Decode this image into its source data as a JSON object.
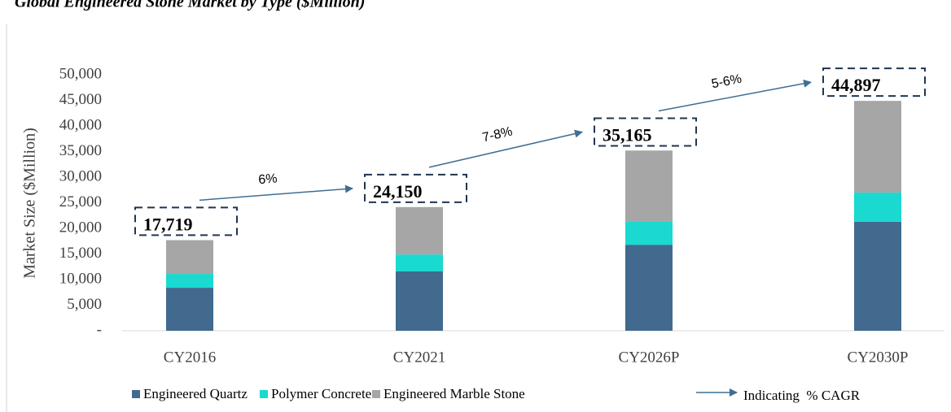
{
  "chart_data": {
    "type": "bar",
    "stacked": true,
    "title": "Global Engineered Stone Market by Type ($Million)",
    "y_label": "Market Size ($Million)",
    "categories": [
      "CY2016",
      "CY2021",
      "CY2026P",
      "CY2030P"
    ],
    "series": [
      {
        "name": "Engineered Quartz",
        "color": "#416a8e",
        "values": [
          8400,
          11600,
          16800,
          21300
        ]
      },
      {
        "name": "Polymer Concrete",
        "color": "#19d9d0",
        "values": [
          2700,
          3300,
          4600,
          5700
        ]
      },
      {
        "name": "Engineered Marble Stone",
        "color": "#a6a6a6",
        "values": [
          6600,
          9250,
          13800,
          17900
        ]
      }
    ],
    "totals": {
      "values": [
        17719,
        24150,
        35165,
        44897
      ],
      "value_labels": [
        "17,719",
        "24,150",
        "35,165",
        "44,897"
      ]
    },
    "cagr": {
      "labels": [
        "6%",
        "7-8%",
        "5-6%"
      ],
      "color": "#3f6e94",
      "legend": "Indicating  % CAGR"
    },
    "ylim": [
      0,
      50000
    ],
    "yticks": [
      {
        "value": 0,
        "label": "-"
      },
      {
        "value": 5000,
        "label": "5,000"
      },
      {
        "value": 10000,
        "label": "10,000"
      },
      {
        "value": 15000,
        "label": "15,000"
      },
      {
        "value": 20000,
        "label": "20,000"
      },
      {
        "value": 25000,
        "label": "25,000"
      },
      {
        "value": 30000,
        "label": "30,000"
      },
      {
        "value": 35000,
        "label": "35,000"
      },
      {
        "value": 40000,
        "label": "40,000"
      },
      {
        "value": 45000,
        "label": "45,000"
      },
      {
        "value": 50000,
        "label": "50,000"
      }
    ],
    "grid": false
  }
}
